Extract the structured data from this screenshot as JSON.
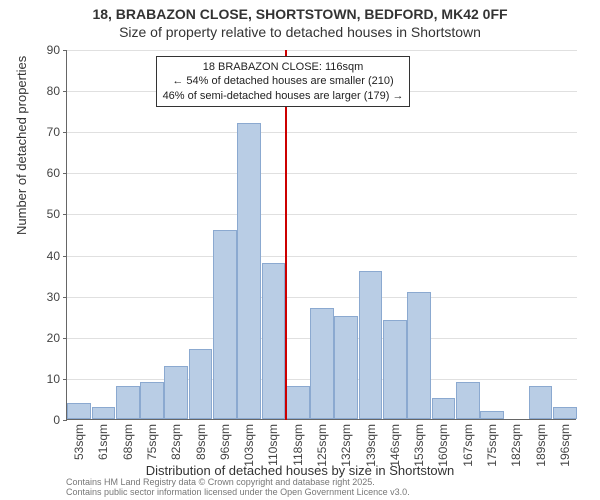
{
  "title": {
    "line1": "18, BRABAZON CLOSE, SHORTSTOWN, BEDFORD, MK42 0FF",
    "line2": "Size of property relative to detached houses in Shortstown"
  },
  "chart": {
    "type": "histogram",
    "xlabel": "Distribution of detached houses by size in Shortstown",
    "ylabel": "Number of detached properties",
    "ylim": [
      0,
      90
    ],
    "ytick_step": 10,
    "background_color": "#ffffff",
    "grid_color": "#e0e0e0",
    "axis_color": "#666666",
    "bar_fill": "#b9cde5",
    "bar_border": "#8ba9d0",
    "marker_color": "#cc0000",
    "label_fontsize": 13,
    "tick_fontsize": 12,
    "categories": [
      "53sqm",
      "61sqm",
      "68sqm",
      "75sqm",
      "82sqm",
      "89sqm",
      "96sqm",
      "103sqm",
      "110sqm",
      "118sqm",
      "125sqm",
      "132sqm",
      "139sqm",
      "146sqm",
      "153sqm",
      "160sqm",
      "167sqm",
      "175sqm",
      "182sqm",
      "189sqm",
      "196sqm"
    ],
    "values": [
      4,
      3,
      8,
      9,
      13,
      17,
      46,
      72,
      38,
      8,
      27,
      25,
      36,
      24,
      31,
      5,
      9,
      2,
      0,
      8,
      3
    ],
    "marker_index": 9,
    "annotation": {
      "line1": "18 BRABAZON CLOSE: 116sqm",
      "line2": "← 54% of detached houses are smaller (210)",
      "line3": "46% of semi-detached houses are larger (179) →"
    }
  },
  "footer": {
    "line1": "Contains HM Land Registry data © Crown copyright and database right 2025.",
    "line2": "Contains public sector information licensed under the Open Government Licence v3.0."
  }
}
